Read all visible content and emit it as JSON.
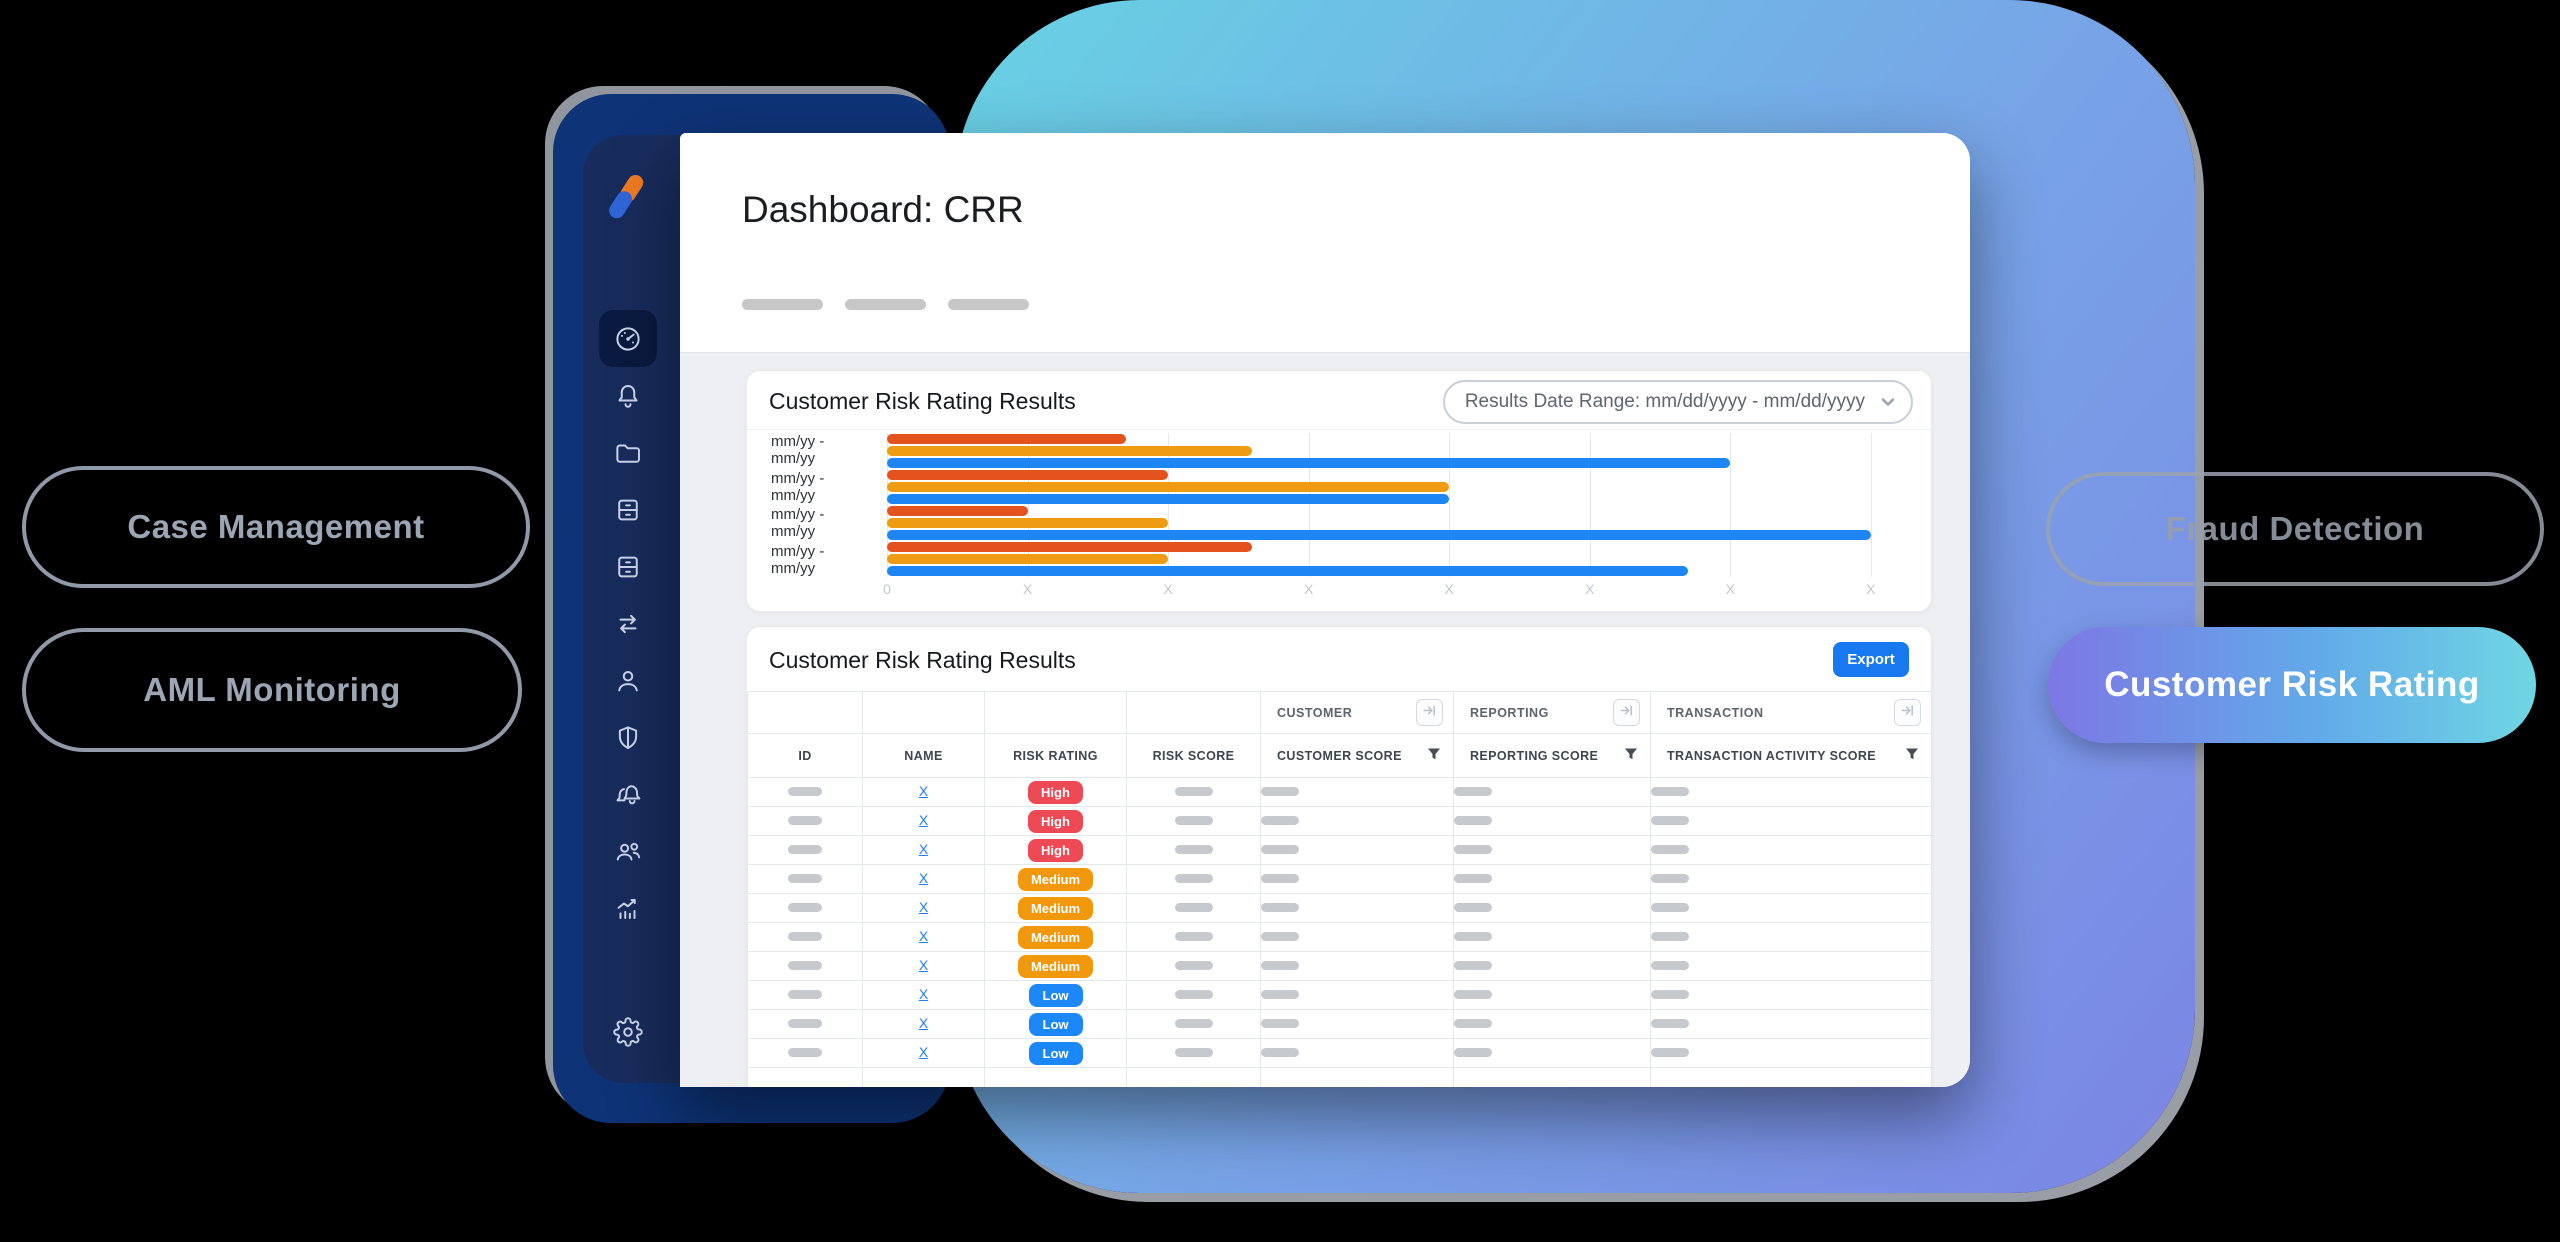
{
  "window": {
    "title": "Dashboard: CRR"
  },
  "sidebar": {
    "items": [
      {
        "id": "dashboard",
        "icon": "gauge-icon",
        "active": true
      },
      {
        "id": "notifications",
        "icon": "bell-icon",
        "active": false
      },
      {
        "id": "cases",
        "icon": "folder-icon",
        "active": false
      },
      {
        "id": "records",
        "icon": "cabinet-icon",
        "active": false
      },
      {
        "id": "records-2",
        "icon": "cabinet-icon",
        "active": false
      },
      {
        "id": "transactions",
        "icon": "transfer-arrows-icon",
        "active": false
      },
      {
        "id": "customers",
        "icon": "user-icon",
        "active": false
      },
      {
        "id": "security",
        "icon": "shield-icon",
        "active": false
      },
      {
        "id": "alerts",
        "icon": "double-bell-icon",
        "active": false
      },
      {
        "id": "teams",
        "icon": "users-group-icon",
        "active": false
      },
      {
        "id": "analytics",
        "icon": "analytics-chart-icon",
        "active": false
      }
    ],
    "settings": {
      "id": "settings",
      "icon": "gear-icon"
    }
  },
  "chart_card": {
    "title": "Customer Risk Rating Results",
    "date_range": "Results Date Range: mm/dd/yyyy - mm/dd/yyyy"
  },
  "chart_data": {
    "type": "bar",
    "orientation": "horizontal",
    "title": "Customer Risk Rating Results",
    "categories": [
      "mm/yy - mm/yy",
      "mm/yy - mm/yy",
      "mm/yy - mm/yy",
      "mm/yy - mm/yy"
    ],
    "series": [
      {
        "name": "red",
        "color": "#e4531d",
        "values": [
          1.7,
          2.0,
          1.0,
          2.6
        ]
      },
      {
        "name": "orange",
        "color": "#f09c12",
        "values": [
          2.6,
          4.0,
          2.0,
          2.0
        ]
      },
      {
        "name": "blue",
        "color": "#1d86f2",
        "values": [
          6.0,
          4.0,
          7.0,
          5.7
        ]
      }
    ],
    "x_ticks": [
      "0",
      "X",
      "X",
      "X",
      "X",
      "X",
      "X",
      "X"
    ],
    "xlim": [
      0,
      7.3
    ],
    "grid": true,
    "legend": false,
    "xlabel": "",
    "ylabel": ""
  },
  "table_card": {
    "title": "Customer Risk Rating Results",
    "export_label": "Export",
    "group_headers": [
      "CUSTOMER",
      "REPORTING",
      "TRANSACTION"
    ],
    "columns": [
      "ID",
      "NAME",
      "RISK RATING",
      "RISK SCORE",
      "CUSTOMER SCORE",
      "REPORTING SCORE",
      "TRANSACTION ACTIVITY SCORE"
    ],
    "rows": [
      {
        "name": "X",
        "rating": "High"
      },
      {
        "name": "X",
        "rating": "High"
      },
      {
        "name": "X",
        "rating": "High"
      },
      {
        "name": "X",
        "rating": "Medium"
      },
      {
        "name": "X",
        "rating": "Medium"
      },
      {
        "name": "X",
        "rating": "Medium"
      },
      {
        "name": "X",
        "rating": "Medium"
      },
      {
        "name": "X",
        "rating": "Low"
      },
      {
        "name": "X",
        "rating": "Low"
      },
      {
        "name": "X",
        "rating": "Low"
      }
    ],
    "rating_colors": {
      "High": "#ee4a55",
      "Medium": "#f1980d",
      "Low": "#1b87f8"
    }
  },
  "floating_labels": {
    "left": [
      "Case Management",
      "AML Monitoring"
    ],
    "fraud": "Fraud Detection",
    "crr": "Customer Risk Rating"
  },
  "colors": {
    "blob_gradient": [
      "#68d2e3",
      "#78a3e7",
      "#7b85e4"
    ],
    "frame_navy": "#0e3377",
    "sidebar_navy": "#182c5c",
    "active_tile": "#0a1a40",
    "export_blue": "#1878f0",
    "link_blue": "#1d7ef2",
    "crr_pill_gradient": [
      "#7d77e4",
      "#62aae9",
      "#6fd6e3"
    ]
  }
}
